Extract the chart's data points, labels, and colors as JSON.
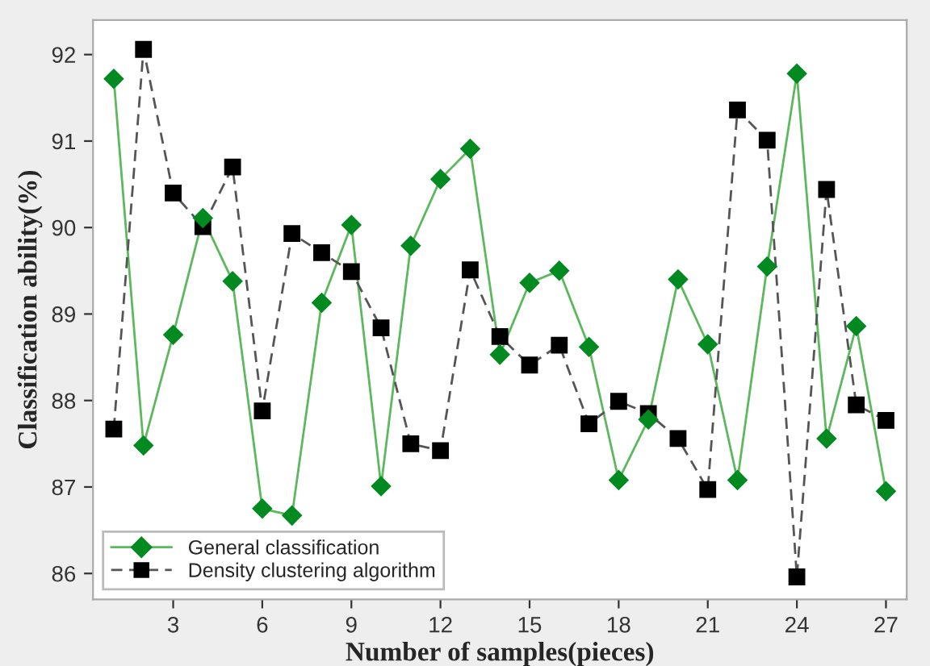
{
  "chart_data": {
    "type": "line",
    "xlabel": "Number of samples(pieces)",
    "ylabel": "Classification ability(%)",
    "x": [
      1,
      2,
      3,
      4,
      5,
      6,
      7,
      8,
      9,
      10,
      11,
      12,
      13,
      14,
      15,
      16,
      17,
      18,
      19,
      20,
      21,
      22,
      23,
      24,
      25,
      26,
      27
    ],
    "xlim": [
      0.3,
      27.7
    ],
    "xticks": [
      3,
      6,
      9,
      12,
      15,
      18,
      21,
      24,
      27
    ],
    "ylim": [
      85.7,
      92.4
    ],
    "yticks": [
      86,
      87,
      88,
      89,
      90,
      91,
      92
    ],
    "grid": false,
    "legend": "bottom left",
    "series": [
      {
        "name": "General classification",
        "color": "#008a20",
        "marker": "diamond",
        "line_style": "solid",
        "values": [
          91.72,
          87.48,
          88.76,
          90.11,
          89.38,
          86.75,
          86.67,
          89.13,
          90.03,
          87.01,
          89.79,
          90.56,
          90.91,
          88.53,
          89.36,
          89.5,
          88.62,
          87.08,
          87.78,
          89.4,
          88.65,
          87.08,
          89.55,
          91.78,
          87.56,
          88.86,
          86.95
        ]
      },
      {
        "name": "Density clustering algorithm",
        "color": "#000000",
        "marker": "square",
        "line_style": "dashed",
        "values": [
          87.67,
          92.06,
          90.4,
          90.01,
          90.7,
          87.88,
          89.93,
          89.71,
          89.49,
          88.84,
          87.5,
          87.42,
          89.51,
          88.74,
          88.41,
          88.64,
          87.73,
          87.99,
          87.85,
          87.56,
          86.97,
          91.36,
          91.01,
          85.96,
          90.44,
          87.95,
          87.77
        ]
      }
    ]
  }
}
